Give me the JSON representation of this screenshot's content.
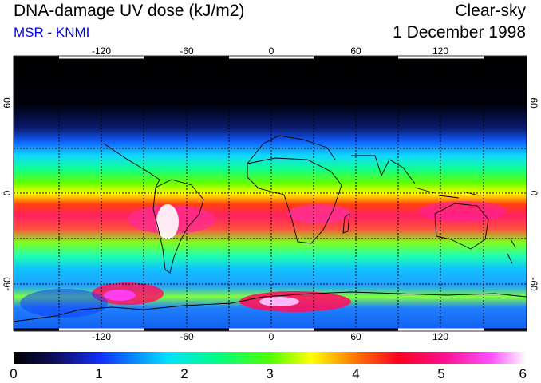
{
  "header": {
    "title": "DNA-damage UV dose (kJ/m2)",
    "source": "MSR - KNMI",
    "condition": "Clear-sky",
    "date": "1 December 1998"
  },
  "map": {
    "lon_ticks": [
      "-120",
      "-60",
      "0",
      "60",
      "120"
    ],
    "lat_ticks_left": [
      "60",
      "0",
      "-60"
    ],
    "lat_ticks_right": [
      "60",
      "0",
      "-60"
    ]
  },
  "colorbar": {
    "labels": [
      "0",
      "1",
      "2",
      "3",
      "4",
      "5",
      "6"
    ],
    "colors": [
      "#000000",
      "#1a1a80",
      "#1040ff",
      "#00e0ff",
      "#00ff80",
      "#40ff00",
      "#ffff00",
      "#ff8000",
      "#ff0020",
      "#ff1090",
      "#ff40ff",
      "#ffffff"
    ]
  }
}
